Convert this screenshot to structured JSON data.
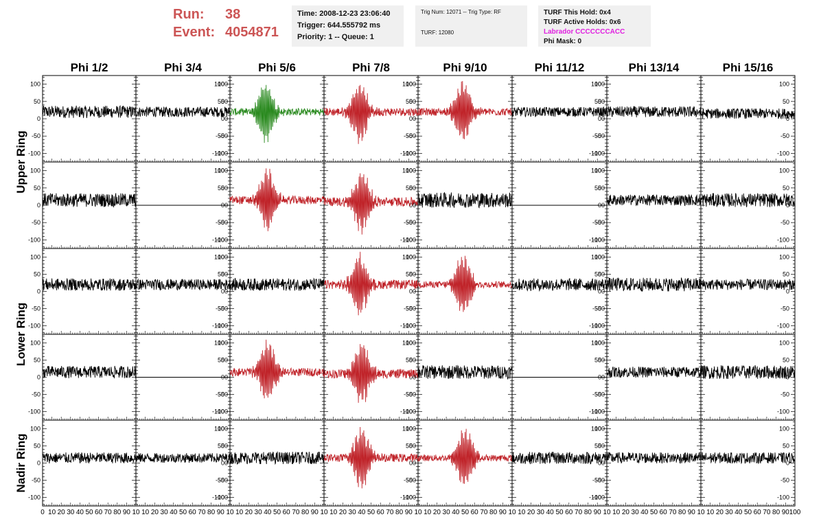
{
  "header": {
    "run_label": "Run:",
    "run_value": "38",
    "event_label": "Event:",
    "event_value": "4054871",
    "time": "Time: 2008-12-23 23:06:40",
    "trigger": "Trigger: 644.555792 ms",
    "priority": "Priority: 1 -- Queue: 1",
    "trig_num": "Trig Num: 12071 -- Trig Type: RF",
    "turf": "TURF: 12080",
    "turf_hold": "TURF This Hold: 0x4",
    "turf_active": "TURF Active Holds: 0x6",
    "labrador": "Labrador CCCCCCCACC",
    "phi_mask": "Phi Mask: 0"
  },
  "colors": {
    "run_text": "#cc5555",
    "labrador_text": "#e020e0",
    "trace_red": "#c0242a",
    "trace_green": "#2a8a1f",
    "trace_black": "#000000"
  },
  "chart_data": {
    "type": "line",
    "columns": [
      "Phi 1/2",
      "Phi 3/4",
      "Phi 5/6",
      "Phi 7/8",
      "Phi 9/10",
      "Phi 11/12",
      "Phi 13/14",
      "Phi 15/16"
    ],
    "ring_labels": [
      "Upper Ring",
      "Lower Ring",
      "Nadir Ring"
    ],
    "xlim": [
      0,
      100
    ],
    "ylim": [
      -125,
      125
    ],
    "x_tick_labels": [
      "0",
      "10",
      "20",
      "30",
      "40",
      "50",
      "60",
      "70",
      "80",
      "90",
      "100"
    ],
    "y_tick_labels": [
      "100",
      "50",
      "0",
      "-50",
      "-100"
    ],
    "panels": [
      [
        {
          "c": "black",
          "a": 18,
          "o": 20,
          "p": 0
        },
        {
          "c": "black",
          "a": 15,
          "o": 20,
          "p": 0
        },
        {
          "c": "green",
          "a": 18,
          "o": 20,
          "p": 38
        },
        {
          "c": "red",
          "a": 20,
          "o": 20,
          "p": 38
        },
        {
          "c": "red",
          "a": 18,
          "o": 20,
          "p": 48
        },
        {
          "c": "black",
          "a": 14,
          "o": 20,
          "p": 0
        },
        {
          "c": "black",
          "a": 16,
          "o": 20,
          "p": 0
        },
        {
          "c": "black",
          "a": 15,
          "o": 15,
          "p": 0
        }
      ],
      [
        {
          "c": "black",
          "a": 20,
          "o": 15,
          "p": 0
        },
        {
          "c": "flat",
          "a": 0,
          "o": 0,
          "p": 0
        },
        {
          "c": "red",
          "a": 20,
          "o": 15,
          "p": 40
        },
        {
          "c": "red",
          "a": 22,
          "o": 10,
          "p": 40
        },
        {
          "c": "black",
          "a": 22,
          "o": 15,
          "p": 0
        },
        {
          "c": "flat",
          "a": 0,
          "o": 0,
          "p": 0
        },
        {
          "c": "black",
          "a": 16,
          "o": 15,
          "p": 0
        },
        {
          "c": "black",
          "a": 20,
          "o": 15,
          "p": 0
        }
      ],
      [
        {
          "c": "black",
          "a": 18,
          "o": 20,
          "p": 0
        },
        {
          "c": "black",
          "a": 16,
          "o": 20,
          "p": 0
        },
        {
          "c": "black",
          "a": 18,
          "o": 20,
          "p": 0
        },
        {
          "c": "red",
          "a": 22,
          "o": 20,
          "p": 38
        },
        {
          "c": "red",
          "a": 16,
          "o": 20,
          "p": 48
        },
        {
          "c": "black",
          "a": 18,
          "o": 20,
          "p": 0
        },
        {
          "c": "black",
          "a": 20,
          "o": 20,
          "p": 0
        },
        {
          "c": "black",
          "a": 16,
          "o": 20,
          "p": 0
        }
      ],
      [
        {
          "c": "black",
          "a": 18,
          "o": 15,
          "p": 0
        },
        {
          "c": "flat",
          "a": 0,
          "o": 0,
          "p": 0
        },
        {
          "c": "red",
          "a": 20,
          "o": 15,
          "p": 40
        },
        {
          "c": "red",
          "a": 22,
          "o": 10,
          "p": 40
        },
        {
          "c": "black",
          "a": 20,
          "o": 15,
          "p": 0
        },
        {
          "c": "flat",
          "a": 0,
          "o": 0,
          "p": 0
        },
        {
          "c": "black",
          "a": 16,
          "o": 15,
          "p": 0
        },
        {
          "c": "black",
          "a": 20,
          "o": 15,
          "p": 0
        }
      ],
      [
        {
          "c": "black",
          "a": 16,
          "o": 15,
          "p": 0
        },
        {
          "c": "black",
          "a": 14,
          "o": 15,
          "p": 0
        },
        {
          "c": "black",
          "a": 18,
          "o": 15,
          "p": 0
        },
        {
          "c": "red",
          "a": 20,
          "o": 15,
          "p": 40
        },
        {
          "c": "red",
          "a": 16,
          "o": 15,
          "p": 50
        },
        {
          "c": "black",
          "a": 18,
          "o": 15,
          "p": 0
        },
        {
          "c": "black",
          "a": 16,
          "o": 15,
          "p": 0
        },
        {
          "c": "black",
          "a": 16,
          "o": 15,
          "p": 0
        }
      ]
    ],
    "series_note": ""
  }
}
